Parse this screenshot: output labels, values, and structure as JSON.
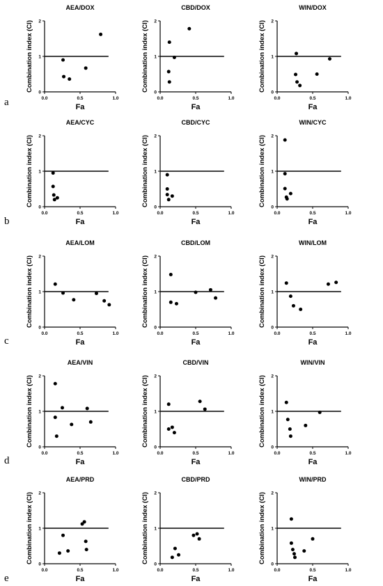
{
  "row_labels": [
    "a",
    "b",
    "c",
    "d",
    "e"
  ],
  "chart_data": [
    {
      "type": "scatter",
      "title": "AEA/DOX",
      "xlabel": "Fa",
      "ylabel": "Combination index (CI)",
      "xlim": [
        0,
        1
      ],
      "ylim": [
        0,
        2
      ],
      "xticks": [
        "0.0",
        "0.5",
        "1.0"
      ],
      "yticks": [
        "0",
        "1",
        "2"
      ],
      "reference_line": 1,
      "points": [
        [
          0.26,
          0.9
        ],
        [
          0.27,
          0.43
        ],
        [
          0.35,
          0.36
        ],
        [
          0.58,
          0.67
        ],
        [
          0.79,
          1.62
        ]
      ]
    },
    {
      "type": "scatter",
      "title": "CBD/DOX",
      "xlabel": "Fa",
      "ylabel": "Combination index (CI)",
      "xlim": [
        0,
        1
      ],
      "ylim": [
        0,
        2
      ],
      "xticks": [
        "0.0",
        "0.5",
        "1.0"
      ],
      "yticks": [
        "0",
        "1",
        "2"
      ],
      "reference_line": 1,
      "points": [
        [
          0.13,
          1.4
        ],
        [
          0.12,
          0.57
        ],
        [
          0.13,
          0.28
        ],
        [
          0.2,
          0.97
        ],
        [
          0.41,
          1.78
        ]
      ]
    },
    {
      "type": "scatter",
      "title": "WIN/DOX",
      "xlabel": "Fa",
      "ylabel": "Combination index (CI)",
      "xlim": [
        0,
        1
      ],
      "ylim": [
        0,
        2
      ],
      "xticks": [
        "0.0",
        "0.5",
        "1.0"
      ],
      "yticks": [
        "0",
        "1",
        "2"
      ],
      "reference_line": 1,
      "points": [
        [
          0.27,
          1.08
        ],
        [
          0.26,
          0.49
        ],
        [
          0.28,
          0.28
        ],
        [
          0.32,
          0.18
        ],
        [
          0.56,
          0.5
        ],
        [
          0.74,
          0.93
        ]
      ]
    },
    {
      "type": "scatter",
      "title": "AEA/CYC",
      "xlabel": "Fa",
      "ylabel": "Combination index (CI)",
      "xlim": [
        0,
        1
      ],
      "ylim": [
        0,
        2
      ],
      "xticks": [
        "0.0",
        "0.5",
        "1.0"
      ],
      "yticks": [
        "0",
        "1",
        "2"
      ],
      "reference_line": 1,
      "points": [
        [
          0.12,
          0.95
        ],
        [
          0.12,
          0.57
        ],
        [
          0.13,
          0.33
        ],
        [
          0.14,
          0.2
        ],
        [
          0.18,
          0.25
        ]
      ]
    },
    {
      "type": "scatter",
      "title": "CBD/CYC",
      "xlabel": "Fa",
      "ylabel": "Combination index (CI)",
      "xlim": [
        0,
        1
      ],
      "ylim": [
        0,
        2
      ],
      "xticks": [
        "0.0",
        "0.5",
        "1.0"
      ],
      "yticks": [
        "0",
        "1",
        "2"
      ],
      "reference_line": 1,
      "points": [
        [
          0.1,
          0.9
        ],
        [
          0.1,
          0.5
        ],
        [
          0.1,
          0.34
        ],
        [
          0.12,
          0.2
        ],
        [
          0.17,
          0.3
        ]
      ]
    },
    {
      "type": "scatter",
      "title": "WIN/CYC",
      "xlabel": "Fa",
      "ylabel": "Combination index (CI)",
      "xlim": [
        0,
        1
      ],
      "ylim": [
        0,
        2
      ],
      "xticks": [
        "0.0",
        "0.5",
        "1.0"
      ],
      "yticks": [
        "0",
        "1",
        "2"
      ],
      "reference_line": 1,
      "points": [
        [
          0.11,
          1.88
        ],
        [
          0.11,
          0.93
        ],
        [
          0.11,
          0.51
        ],
        [
          0.13,
          0.27
        ],
        [
          0.14,
          0.22
        ],
        [
          0.19,
          0.37
        ]
      ]
    },
    {
      "type": "scatter",
      "title": "AEA/LOM",
      "xlabel": "Fa",
      "ylabel": "Combination index (CI)",
      "xlim": [
        0,
        1
      ],
      "ylim": [
        0,
        2
      ],
      "xticks": [
        "0.0",
        "0.5",
        "1.0"
      ],
      "yticks": [
        "0",
        "1",
        "2"
      ],
      "reference_line": 1,
      "points": [
        [
          0.15,
          1.21
        ],
        [
          0.26,
          0.96
        ],
        [
          0.41,
          0.77
        ],
        [
          0.73,
          0.95
        ],
        [
          0.84,
          0.74
        ],
        [
          0.91,
          0.63
        ]
      ]
    },
    {
      "type": "scatter",
      "title": "CBD/LOM",
      "xlabel": "Fa",
      "ylabel": "Combination index (CI)",
      "xlim": [
        0,
        1
      ],
      "ylim": [
        0,
        2
      ],
      "xticks": [
        "0.0",
        "0.5",
        "1.0"
      ],
      "yticks": [
        "0",
        "1",
        "2"
      ],
      "reference_line": 1,
      "points": [
        [
          0.15,
          1.48
        ],
        [
          0.15,
          0.7
        ],
        [
          0.23,
          0.66
        ],
        [
          0.5,
          0.98
        ],
        [
          0.71,
          1.05
        ],
        [
          0.78,
          0.82
        ]
      ]
    },
    {
      "type": "scatter",
      "title": "WIN/LOM",
      "xlabel": "Fa",
      "ylabel": "Combination index (CI)",
      "xlim": [
        0,
        1
      ],
      "ylim": [
        0,
        2
      ],
      "xticks": [
        "0.0",
        "0.5",
        "1.0"
      ],
      "yticks": [
        "0",
        "1",
        "2"
      ],
      "reference_line": 1,
      "points": [
        [
          0.13,
          1.24
        ],
        [
          0.19,
          0.87
        ],
        [
          0.23,
          0.6
        ],
        [
          0.33,
          0.5
        ],
        [
          0.72,
          1.21
        ],
        [
          0.83,
          1.26
        ]
      ]
    },
    {
      "type": "scatter",
      "title": "AEA/VIN",
      "xlabel": "Fa",
      "ylabel": "Combination index (CI)",
      "xlim": [
        0,
        1
      ],
      "ylim": [
        0,
        2
      ],
      "xticks": [
        "0.0",
        "0.5",
        "1.0"
      ],
      "yticks": [
        "0",
        "1",
        "2"
      ],
      "reference_line": 1,
      "points": [
        [
          0.15,
          1.78
        ],
        [
          0.15,
          0.83
        ],
        [
          0.17,
          0.3
        ],
        [
          0.25,
          1.1
        ],
        [
          0.38,
          0.63
        ],
        [
          0.6,
          1.08
        ],
        [
          0.65,
          0.7
        ]
      ]
    },
    {
      "type": "scatter",
      "title": "CBD/VIN",
      "xlabel": "Fa",
      "ylabel": "Combination index (CI)",
      "xlim": [
        0,
        1
      ],
      "ylim": [
        0,
        2
      ],
      "xticks": [
        "0.0",
        "0.5",
        "1.0"
      ],
      "yticks": [
        "0",
        "1",
        "2"
      ],
      "reference_line": 1,
      "points": [
        [
          0.12,
          1.2
        ],
        [
          0.12,
          0.5
        ],
        [
          0.17,
          0.55
        ],
        [
          0.2,
          0.4
        ],
        [
          0.56,
          1.28
        ],
        [
          0.63,
          1.06
        ]
      ]
    },
    {
      "type": "scatter",
      "title": "WIN/VIN",
      "xlabel": "Fa",
      "ylabel": "Combination index (CI)",
      "xlim": [
        0,
        1
      ],
      "ylim": [
        0,
        2
      ],
      "xticks": [
        "0.0",
        "0.5",
        "1.0"
      ],
      "yticks": [
        "0",
        "1",
        "2"
      ],
      "reference_line": 1,
      "points": [
        [
          0.13,
          1.25
        ],
        [
          0.15,
          0.77
        ],
        [
          0.18,
          0.5
        ],
        [
          0.19,
          0.3
        ],
        [
          0.4,
          0.6
        ],
        [
          0.6,
          0.97
        ]
      ]
    },
    {
      "type": "scatter",
      "title": "AEA/PRD",
      "xlabel": "Fa",
      "ylabel": "Combination index (CI)",
      "xlim": [
        0,
        1
      ],
      "ylim": [
        0,
        2
      ],
      "xticks": [
        "0.0",
        "0.5",
        "1.0"
      ],
      "yticks": [
        "0",
        "1",
        "2"
      ],
      "reference_line": 1,
      "points": [
        [
          0.21,
          0.3
        ],
        [
          0.26,
          0.8
        ],
        [
          0.33,
          0.36
        ],
        [
          0.53,
          1.12
        ],
        [
          0.56,
          1.18
        ],
        [
          0.58,
          0.63
        ],
        [
          0.59,
          0.4
        ]
      ]
    },
    {
      "type": "scatter",
      "title": "CBD/PRD",
      "xlabel": "Fa",
      "ylabel": "Combination index (CI)",
      "xlim": [
        0,
        1
      ],
      "ylim": [
        0,
        2
      ],
      "xticks": [
        "0.0",
        "0.5",
        "1.0"
      ],
      "yticks": [
        "0",
        "1",
        "2"
      ],
      "reference_line": 1,
      "points": [
        [
          0.17,
          0.18
        ],
        [
          0.21,
          0.43
        ],
        [
          0.26,
          0.25
        ],
        [
          0.47,
          0.8
        ],
        [
          0.52,
          0.84
        ],
        [
          0.55,
          0.7
        ]
      ]
    },
    {
      "type": "scatter",
      "title": "WIN/PRD",
      "xlabel": "Fa",
      "ylabel": "Combination index (CI)",
      "xlim": [
        0,
        1
      ],
      "ylim": [
        0,
        2
      ],
      "xticks": [
        "0.0",
        "0.5",
        "1.0"
      ],
      "yticks": [
        "0",
        "1",
        "2"
      ],
      "reference_line": 1,
      "points": [
        [
          0.2,
          1.26
        ],
        [
          0.2,
          0.58
        ],
        [
          0.22,
          0.4
        ],
        [
          0.24,
          0.28
        ],
        [
          0.25,
          0.18
        ],
        [
          0.38,
          0.36
        ],
        [
          0.5,
          0.7
        ]
      ]
    }
  ]
}
